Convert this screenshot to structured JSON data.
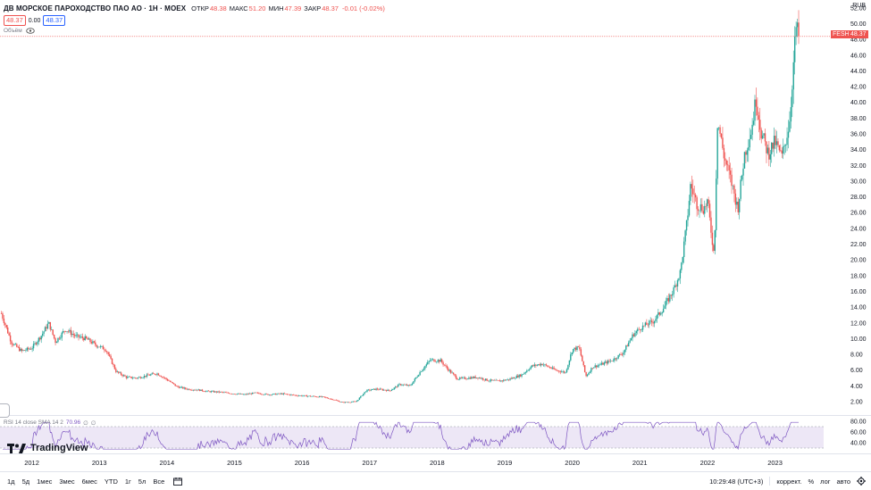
{
  "header": {
    "title": "ДВ МОРСКОЕ ПАРОХОДСТВО ПАО АО · 1Н · MOEX",
    "ohlc": [
      {
        "key": "ОТКР",
        "value": "48.38"
      },
      {
        "key": "МАКС",
        "value": "51.20"
      },
      {
        "key": "МИН",
        "value": "47.39"
      },
      {
        "key": "ЗАКР",
        "value": "48.37"
      },
      {
        "key": "",
        "value": "-0.01 (-0.02%)"
      }
    ],
    "bid": "48.37",
    "spread": "0.00",
    "ask": "48.37",
    "volume_label": "Объём"
  },
  "currency": "RUB",
  "symbol_tag": "FESH",
  "current_price": "48.37",
  "rsi": {
    "label": "RSI 14 close SMA 14 2",
    "value": "70.96",
    "extra1": "∅",
    "extra2": "∅",
    "ticks": [
      "80.00",
      "60.00",
      "40.00"
    ],
    "upper": 70,
    "lower": 30
  },
  "brand": "TradingView",
  "bottom_bar": {
    "ranges": [
      "1д",
      "5д",
      "1мес",
      "3мес",
      "6мес",
      "YTD",
      "1г",
      "5л",
      "Все"
    ],
    "time": "10:29:48 (UTC+3)",
    "tools": [
      "коррект.",
      "%",
      "лог",
      "авто"
    ]
  },
  "colors": {
    "up": "#26a69a",
    "down": "#ef5350",
    "rsi": "#7e57c2",
    "rsi_band": "#ede7f6"
  },
  "chart_data": {
    "type": "candlestick",
    "title": "ДВ МОРСКОЕ ПАРОХОДСТВО ПАО АО · 1Н · MOEX",
    "x_ticks": [
      "2012",
      "2013",
      "2014",
      "2015",
      "2016",
      "2017",
      "2018",
      "2019",
      "2020",
      "2021",
      "2022",
      "2023"
    ],
    "y_ticks": [
      "2.00",
      "4.00",
      "6.00",
      "8.00",
      "10.00",
      "12.00",
      "14.00",
      "16.00",
      "18.00",
      "20.00",
      "22.00",
      "24.00",
      "26.00",
      "28.00",
      "30.00",
      "32.00",
      "34.00",
      "36.00",
      "38.00",
      "40.00",
      "42.00",
      "44.00",
      "46.00",
      "48.00",
      "50.00",
      "52.00"
    ],
    "ylim": [
      0.3,
      53
    ],
    "xlim": [
      2011.53,
      2023.72
    ],
    "series": [
      {
        "name": "FESH",
        "points": [
          [
            2011.55,
            13.2
          ],
          [
            2011.7,
            9.5
          ],
          [
            2011.85,
            8.4
          ],
          [
            2012.0,
            8.8
          ],
          [
            2012.15,
            10.5
          ],
          [
            2012.25,
            12.0
          ],
          [
            2012.35,
            9.6
          ],
          [
            2012.5,
            11.2
          ],
          [
            2012.65,
            10.3
          ],
          [
            2012.8,
            10.0
          ],
          [
            2012.95,
            9.2
          ],
          [
            2013.1,
            8.6
          ],
          [
            2013.25,
            5.8
          ],
          [
            2013.4,
            5.1
          ],
          [
            2013.55,
            5.0
          ],
          [
            2013.7,
            5.3
          ],
          [
            2013.85,
            5.6
          ],
          [
            2014.0,
            4.8
          ],
          [
            2014.15,
            3.9
          ],
          [
            2014.3,
            3.6
          ],
          [
            2014.45,
            3.5
          ],
          [
            2014.6,
            3.3
          ],
          [
            2014.8,
            3.2
          ],
          [
            2015.0,
            3.0
          ],
          [
            2015.15,
            2.9
          ],
          [
            2015.3,
            3.1
          ],
          [
            2015.5,
            2.9
          ],
          [
            2015.7,
            3.0
          ],
          [
            2015.9,
            2.8
          ],
          [
            2016.1,
            2.7
          ],
          [
            2016.3,
            2.6
          ],
          [
            2016.45,
            2.3
          ],
          [
            2016.6,
            1.9
          ],
          [
            2016.8,
            2.0
          ],
          [
            2016.95,
            3.4
          ],
          [
            2017.1,
            3.6
          ],
          [
            2017.3,
            3.4
          ],
          [
            2017.45,
            4.2
          ],
          [
            2017.6,
            4.0
          ],
          [
            2017.75,
            5.8
          ],
          [
            2017.9,
            7.3
          ],
          [
            2018.05,
            7.2
          ],
          [
            2018.15,
            6.2
          ],
          [
            2018.3,
            4.9
          ],
          [
            2018.45,
            5.0
          ],
          [
            2018.6,
            5.1
          ],
          [
            2018.75,
            4.7
          ],
          [
            2018.9,
            4.6
          ],
          [
            2019.05,
            4.8
          ],
          [
            2019.25,
            5.4
          ],
          [
            2019.4,
            6.5
          ],
          [
            2019.55,
            6.8
          ],
          [
            2019.75,
            6.0
          ],
          [
            2019.9,
            5.7
          ],
          [
            2020.0,
            8.6
          ],
          [
            2020.1,
            8.9
          ],
          [
            2020.2,
            5.2
          ],
          [
            2020.3,
            6.4
          ],
          [
            2020.45,
            6.8
          ],
          [
            2020.6,
            7.3
          ],
          [
            2020.75,
            8.2
          ],
          [
            2020.9,
            10.5
          ],
          [
            2021.0,
            11.3
          ],
          [
            2021.1,
            11.8
          ],
          [
            2021.2,
            12.2
          ],
          [
            2021.35,
            13.9
          ],
          [
            2021.5,
            16.2
          ],
          [
            2021.6,
            18.5
          ],
          [
            2021.7,
            25.0
          ],
          [
            2021.75,
            29.5
          ],
          [
            2021.85,
            27.0
          ],
          [
            2021.95,
            26.5
          ],
          [
            2022.0,
            27.5
          ],
          [
            2022.1,
            20.5
          ],
          [
            2022.15,
            37.8
          ],
          [
            2022.25,
            33.0
          ],
          [
            2022.35,
            30.0
          ],
          [
            2022.45,
            26.5
          ],
          [
            2022.55,
            33.5
          ],
          [
            2022.65,
            36.5
          ],
          [
            2022.72,
            40.5
          ],
          [
            2022.8,
            36.0
          ],
          [
            2022.9,
            33.5
          ],
          [
            2023.0,
            35.0
          ],
          [
            2023.1,
            33.0
          ],
          [
            2023.18,
            36.0
          ],
          [
            2023.22,
            38.0
          ],
          [
            2023.27,
            44.5
          ],
          [
            2023.31,
            49.5
          ],
          [
            2023.35,
            48.37
          ]
        ]
      }
    ]
  }
}
